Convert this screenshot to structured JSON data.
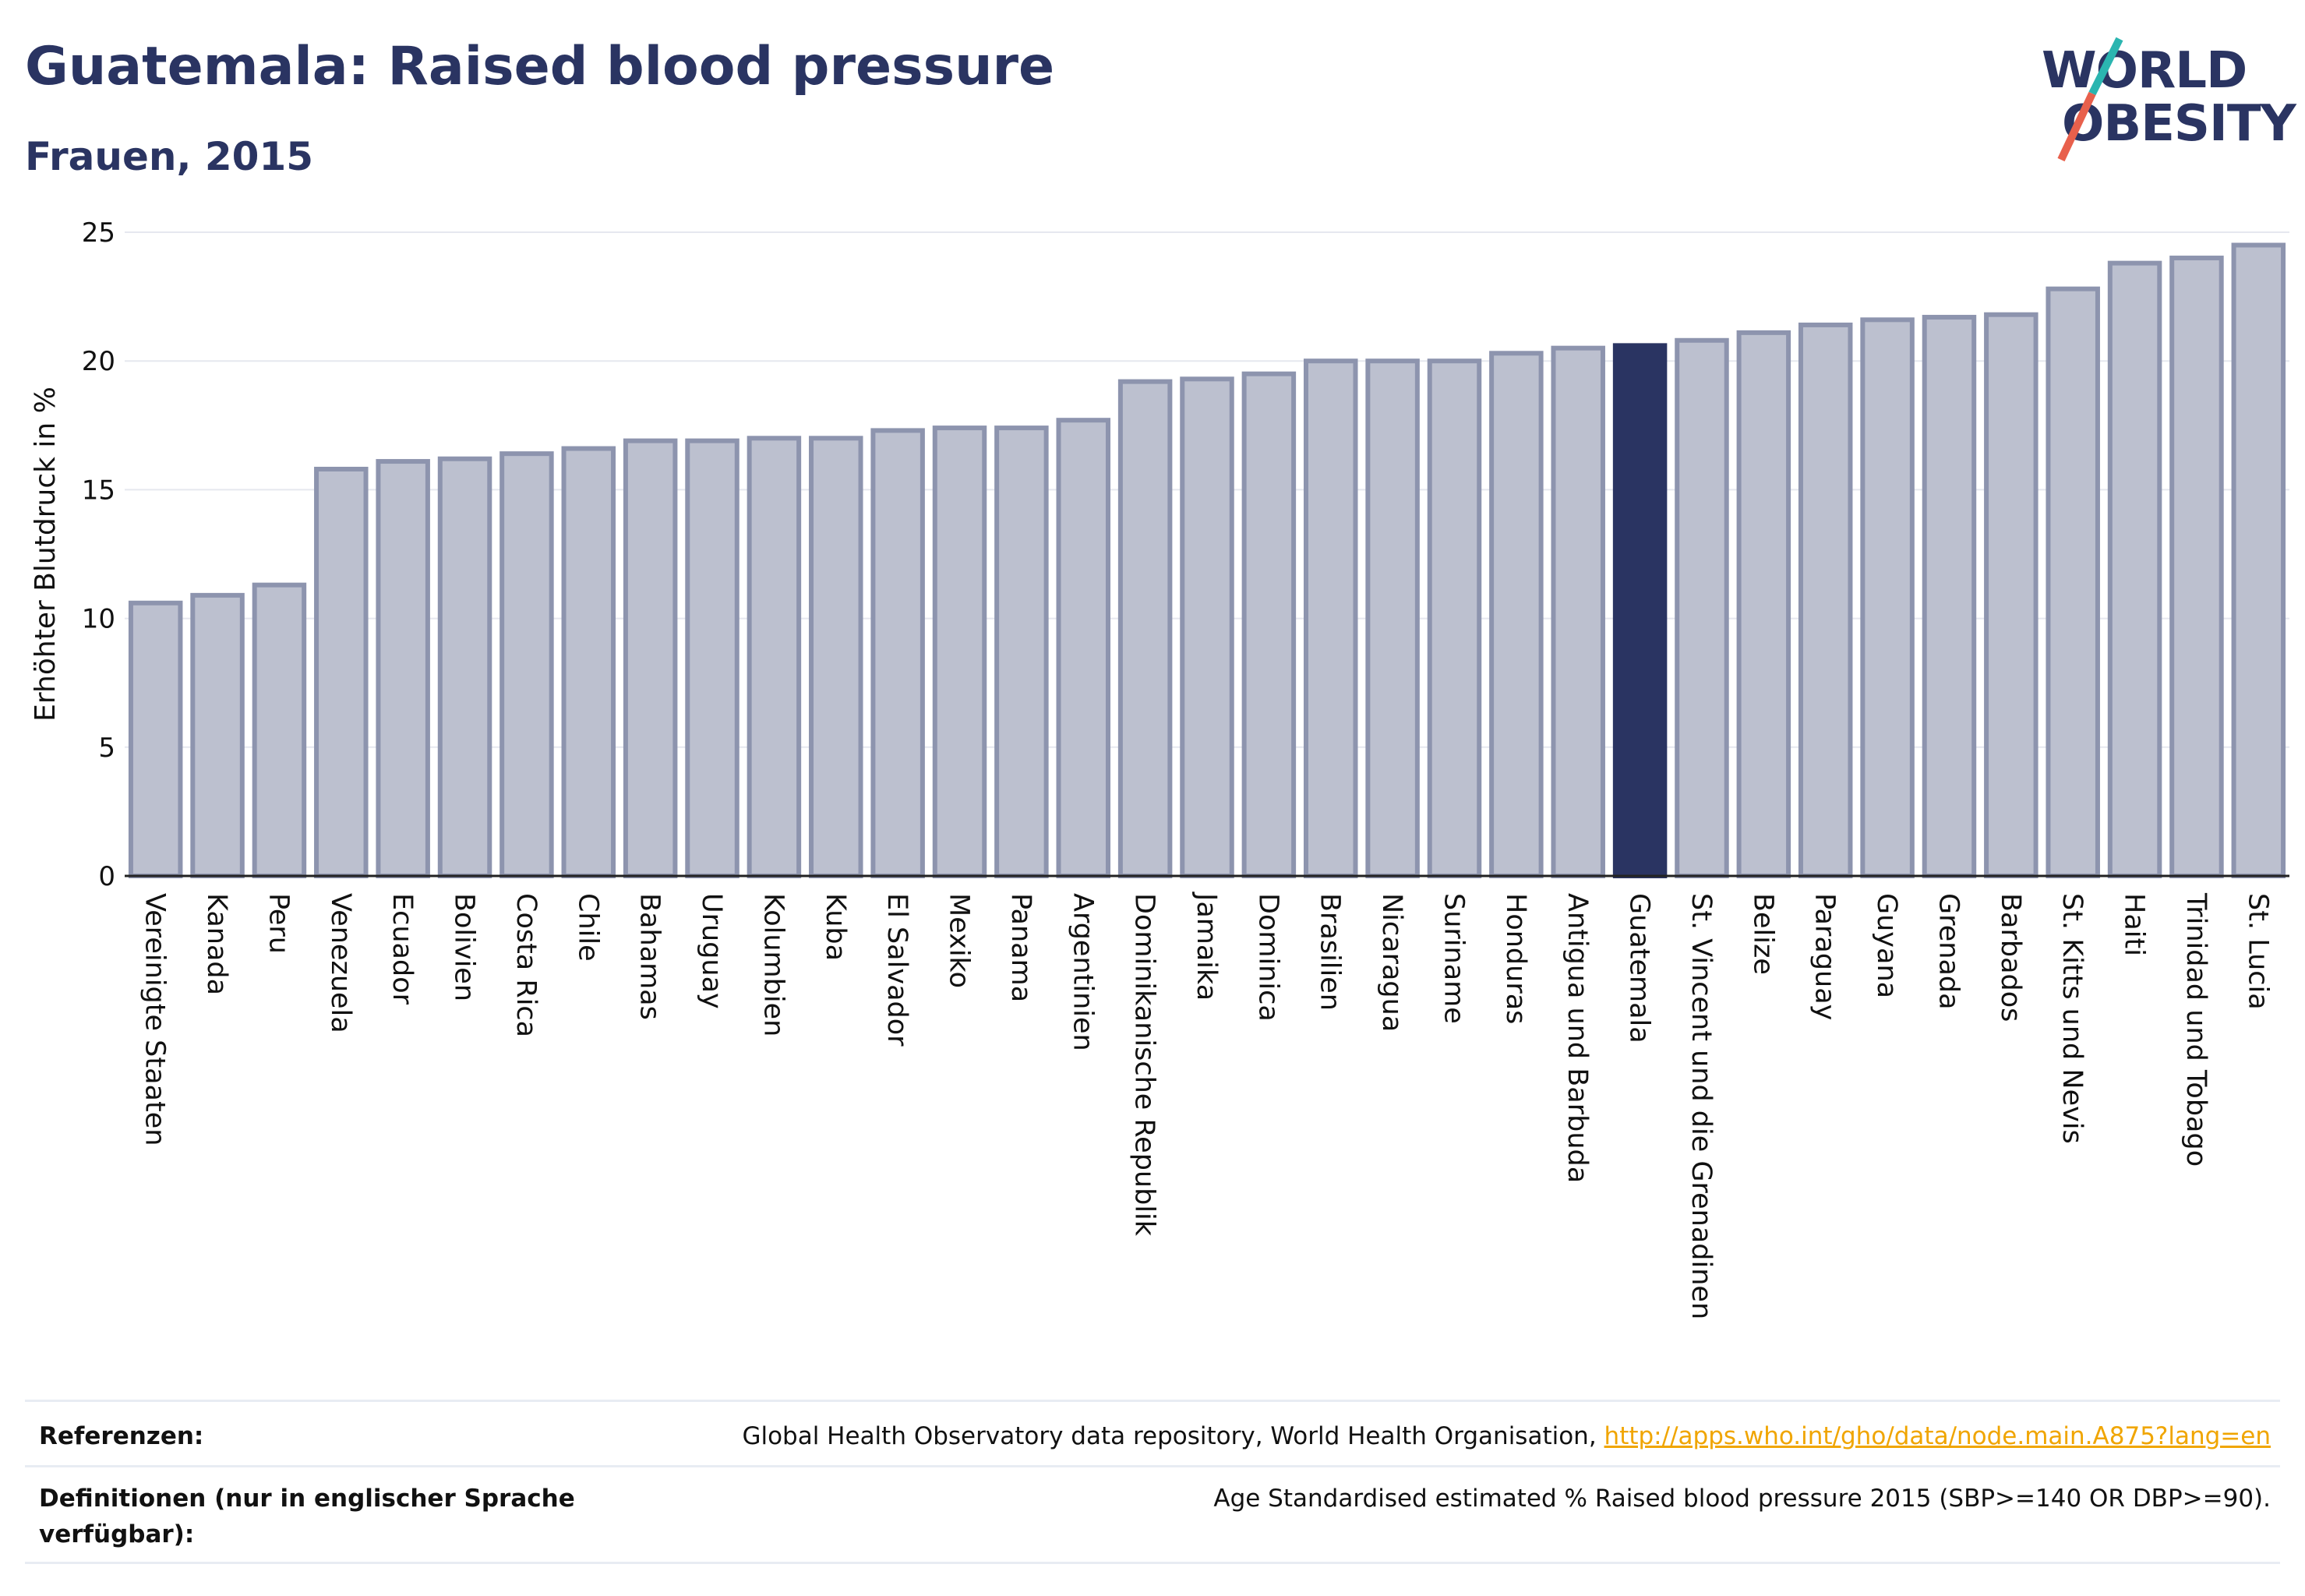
{
  "header": {
    "title": "Guatemala: Raised blood pressure",
    "subtitle": "Frauen, 2015"
  },
  "logo": {
    "line1": "WORLD",
    "line2": "OBESITY"
  },
  "colors": {
    "highlight": "#2a3462",
    "bar_fill": "#bcc0cf",
    "bar_stroke": "#8d94ae",
    "text": "#2a3462",
    "link": "#f0a500",
    "logo_teal": "#2bb5b0",
    "logo_red": "#e8604c"
  },
  "chart_data": {
    "type": "bar",
    "title": "Guatemala: Raised blood pressure",
    "subtitle": "Frauen, 2015",
    "xlabel": "",
    "ylabel": "Erhöhter Blutdruck in %",
    "ylim": [
      0,
      25
    ],
    "yticks": [
      0,
      5,
      10,
      15,
      20,
      25
    ],
    "grid": true,
    "highlight": "Guatemala",
    "categories": [
      "Vereinigte Staaten",
      "Kanada",
      "Peru",
      "Venezuela",
      "Ecuador",
      "Bolivien",
      "Costa Rica",
      "Chile",
      "Bahamas",
      "Uruguay",
      "Kolumbien",
      "Kuba",
      "El Salvador",
      "Mexiko",
      "Panama",
      "Argentinien",
      "Dominikanische Republik",
      "Jamaika",
      "Dominica",
      "Brasilien",
      "Nicaragua",
      "Suriname",
      "Honduras",
      "Antigua und Barbuda",
      "Guatemala",
      "St. Vincent und die Grenadinen",
      "Belize",
      "Paraguay",
      "Guyana",
      "Grenada",
      "Barbados",
      "St. Kitts und Nevis",
      "Haiti",
      "Trinidad und Tobago",
      "St. Lucia"
    ],
    "values": [
      10.6,
      10.9,
      11.3,
      15.8,
      16.1,
      16.2,
      16.4,
      16.6,
      16.9,
      16.9,
      17.0,
      17.0,
      17.3,
      17.4,
      17.4,
      17.7,
      19.2,
      19.3,
      19.5,
      20.0,
      20.0,
      20.0,
      20.3,
      20.5,
      20.6,
      20.8,
      21.1,
      21.4,
      21.6,
      21.7,
      21.8,
      22.8,
      23.8,
      24.0,
      24.5
    ]
  },
  "footer": {
    "references_label": "Referenzen:",
    "references_text": "Global Health Observatory data repository, World Health Organisation, ",
    "references_link": "http://apps.who.int/gho/data/node.main.A875?lang=en",
    "definitions_label": "Definitionen (nur in englischer Sprache verfügbar):",
    "definitions_text": "Age Standardised estimated % Raised blood pressure 2015 (SBP>=140 OR DBP>=90)."
  }
}
